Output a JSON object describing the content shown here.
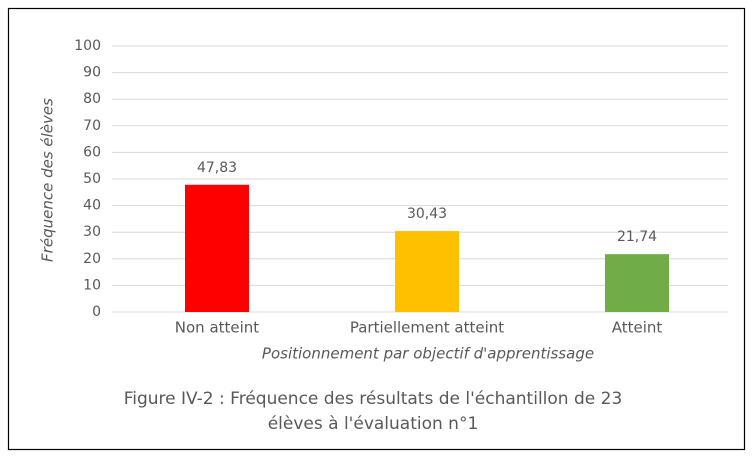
{
  "chart_data": {
    "type": "bar",
    "categories": [
      "Non atteint",
      "Partiellement atteint",
      "Atteint"
    ],
    "values": [
      47.83,
      30.43,
      21.74
    ],
    "value_labels": [
      "47,83",
      "30,43",
      "21,74"
    ],
    "colors": [
      "#ff0000",
      "#ffc000",
      "#70ad47"
    ],
    "ylim": [
      0,
      100
    ],
    "yticks": [
      0,
      10,
      20,
      30,
      40,
      50,
      60,
      70,
      80,
      90,
      100
    ],
    "grid": true,
    "y_label": "Fréquence des élèves",
    "x_label": "Positionnement par objectif d'apprentissage",
    "caption": [
      "Figure IV-2 : Fréquence des résultats de l'échantillon de 23",
      "élèves à l'évaluation n°1"
    ]
  }
}
